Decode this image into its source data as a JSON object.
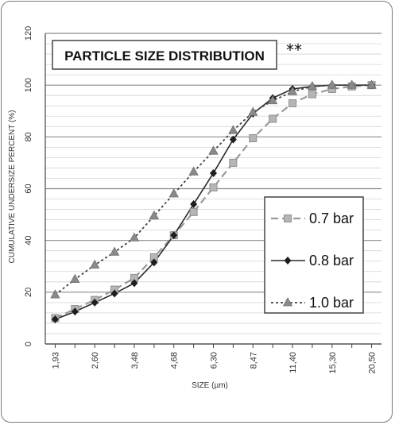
{
  "chart_data": {
    "type": "line",
    "title": "PARTICLE SIZE DISTRIBUTION",
    "annotation": "**",
    "xlabel": "SIZE (µm)",
    "ylabel": "CUMULATIVE UNDERSIZE PERCENT (%)",
    "ylim": [
      0,
      120
    ],
    "yticks": [
      0,
      20,
      40,
      60,
      80,
      100,
      120
    ],
    "grid": true,
    "legend_position": "right",
    "x_tick_labels": [
      "1,93",
      "2,60",
      "3,48",
      "4,68",
      "6,30",
      "8,47",
      "11,40",
      "15,30",
      "20,50"
    ],
    "x_points": [
      1.93,
      2.24,
      2.6,
      3.0,
      3.48,
      4.04,
      4.68,
      5.45,
      6.3,
      7.3,
      8.47,
      9.8,
      11.4,
      13.2,
      15.3,
      17.8,
      20.5
    ],
    "series": [
      {
        "name": "0.7 bar",
        "marker": "square",
        "line": "dashed",
        "color": "#9a9a9a",
        "values": [
          10,
          13.5,
          17,
          21,
          25.5,
          33.5,
          42,
          51,
          60.5,
          70,
          79.5,
          87,
          93,
          96.5,
          98.5,
          99.5,
          100
        ]
      },
      {
        "name": "0.8 bar",
        "marker": "diamond",
        "line": "solid",
        "color": "#2a2a2a",
        "values": [
          9.5,
          12.5,
          16,
          19.5,
          23.5,
          31.5,
          42,
          54,
          66,
          79,
          89,
          95,
          98.5,
          99.5,
          100,
          100,
          100
        ]
      },
      {
        "name": "1.0 bar",
        "marker": "triangle",
        "line": "dotted",
        "color": "#444444",
        "values": [
          19,
          25,
          30.5,
          35.5,
          41,
          49.5,
          58,
          66.5,
          74.5,
          82.5,
          89.5,
          94,
          97.5,
          99.5,
          100,
          100,
          100
        ]
      }
    ]
  }
}
